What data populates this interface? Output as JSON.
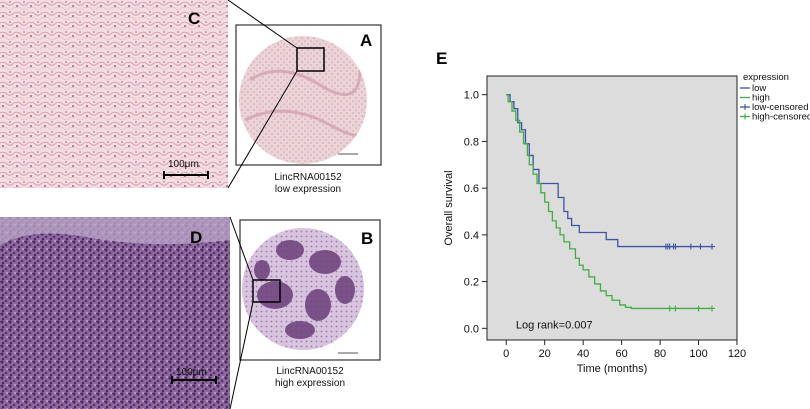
{
  "panels": {
    "A": {
      "letter": "A",
      "caption_line1": "LincRNA00152",
      "caption_line2": "low expression"
    },
    "B": {
      "letter": "B",
      "caption_line1": "LincRNA00152",
      "caption_line2": "high expression"
    },
    "C": {
      "letter": "C",
      "scale_bar": "100μm"
    },
    "D": {
      "letter": "D",
      "scale_bar": "100μm"
    },
    "E": {
      "letter": "E"
    }
  },
  "colors": {
    "low": "#3a54a8",
    "high": "#3fae3f",
    "plot_bg": "#dcdcdc",
    "he_pink": "#f3d6dc",
    "he_purple": "#6a3f7a"
  },
  "chart_data": {
    "type": "line",
    "xlabel": "Time (months)",
    "ylabel": "Overall survival",
    "xlim": [
      -10,
      120
    ],
    "ylim": [
      -0.05,
      1.08
    ],
    "xticks": [
      0,
      20,
      40,
      60,
      80,
      100,
      120
    ],
    "yticks": [
      0.0,
      0.2,
      0.4,
      0.6,
      0.8,
      1.0
    ],
    "ytick_labels": [
      "0.0",
      "0.2",
      "0.4",
      "0.6",
      "0.8",
      "1.0"
    ],
    "annotation": "Log rank=0.007",
    "legend_title": "expression",
    "legend": [
      "low",
      "high",
      "low-censored",
      "high-censored"
    ],
    "grid": false,
    "series": [
      {
        "name": "low",
        "step_points": [
          [
            0,
            1.0
          ],
          [
            2,
            0.97
          ],
          [
            4,
            0.94
          ],
          [
            6,
            0.88
          ],
          [
            8,
            0.85
          ],
          [
            10,
            0.79
          ],
          [
            12,
            0.74
          ],
          [
            14,
            0.68
          ],
          [
            17,
            0.62
          ],
          [
            27,
            0.56
          ],
          [
            30,
            0.5
          ],
          [
            32,
            0.47
          ],
          [
            34,
            0.44
          ],
          [
            38,
            0.41
          ],
          [
            52,
            0.38
          ],
          [
            58,
            0.35
          ],
          [
            107,
            0.35
          ]
        ],
        "censored_x": [
          83,
          84,
          85,
          87,
          88,
          96,
          101,
          107
        ],
        "censored_y": 0.35
      },
      {
        "name": "high",
        "step_points": [
          [
            0,
            1.0
          ],
          [
            1,
            0.97
          ],
          [
            3,
            0.93
          ],
          [
            5,
            0.89
          ],
          [
            7,
            0.84
          ],
          [
            9,
            0.79
          ],
          [
            11,
            0.74
          ],
          [
            12,
            0.7
          ],
          [
            14,
            0.66
          ],
          [
            16,
            0.62
          ],
          [
            18,
            0.58
          ],
          [
            20,
            0.54
          ],
          [
            22,
            0.5
          ],
          [
            24,
            0.46
          ],
          [
            26,
            0.43
          ],
          [
            28,
            0.4
          ],
          [
            30,
            0.37
          ],
          [
            33,
            0.34
          ],
          [
            36,
            0.3
          ],
          [
            38,
            0.27
          ],
          [
            40,
            0.25
          ],
          [
            43,
            0.22
          ],
          [
            46,
            0.19
          ],
          [
            49,
            0.16
          ],
          [
            52,
            0.14
          ],
          [
            55,
            0.12
          ],
          [
            59,
            0.1
          ],
          [
            62,
            0.09
          ],
          [
            65,
            0.085
          ],
          [
            107,
            0.085
          ]
        ],
        "censored_x": [
          85,
          88,
          100,
          107
        ],
        "censored_y": 0.085
      }
    ]
  }
}
